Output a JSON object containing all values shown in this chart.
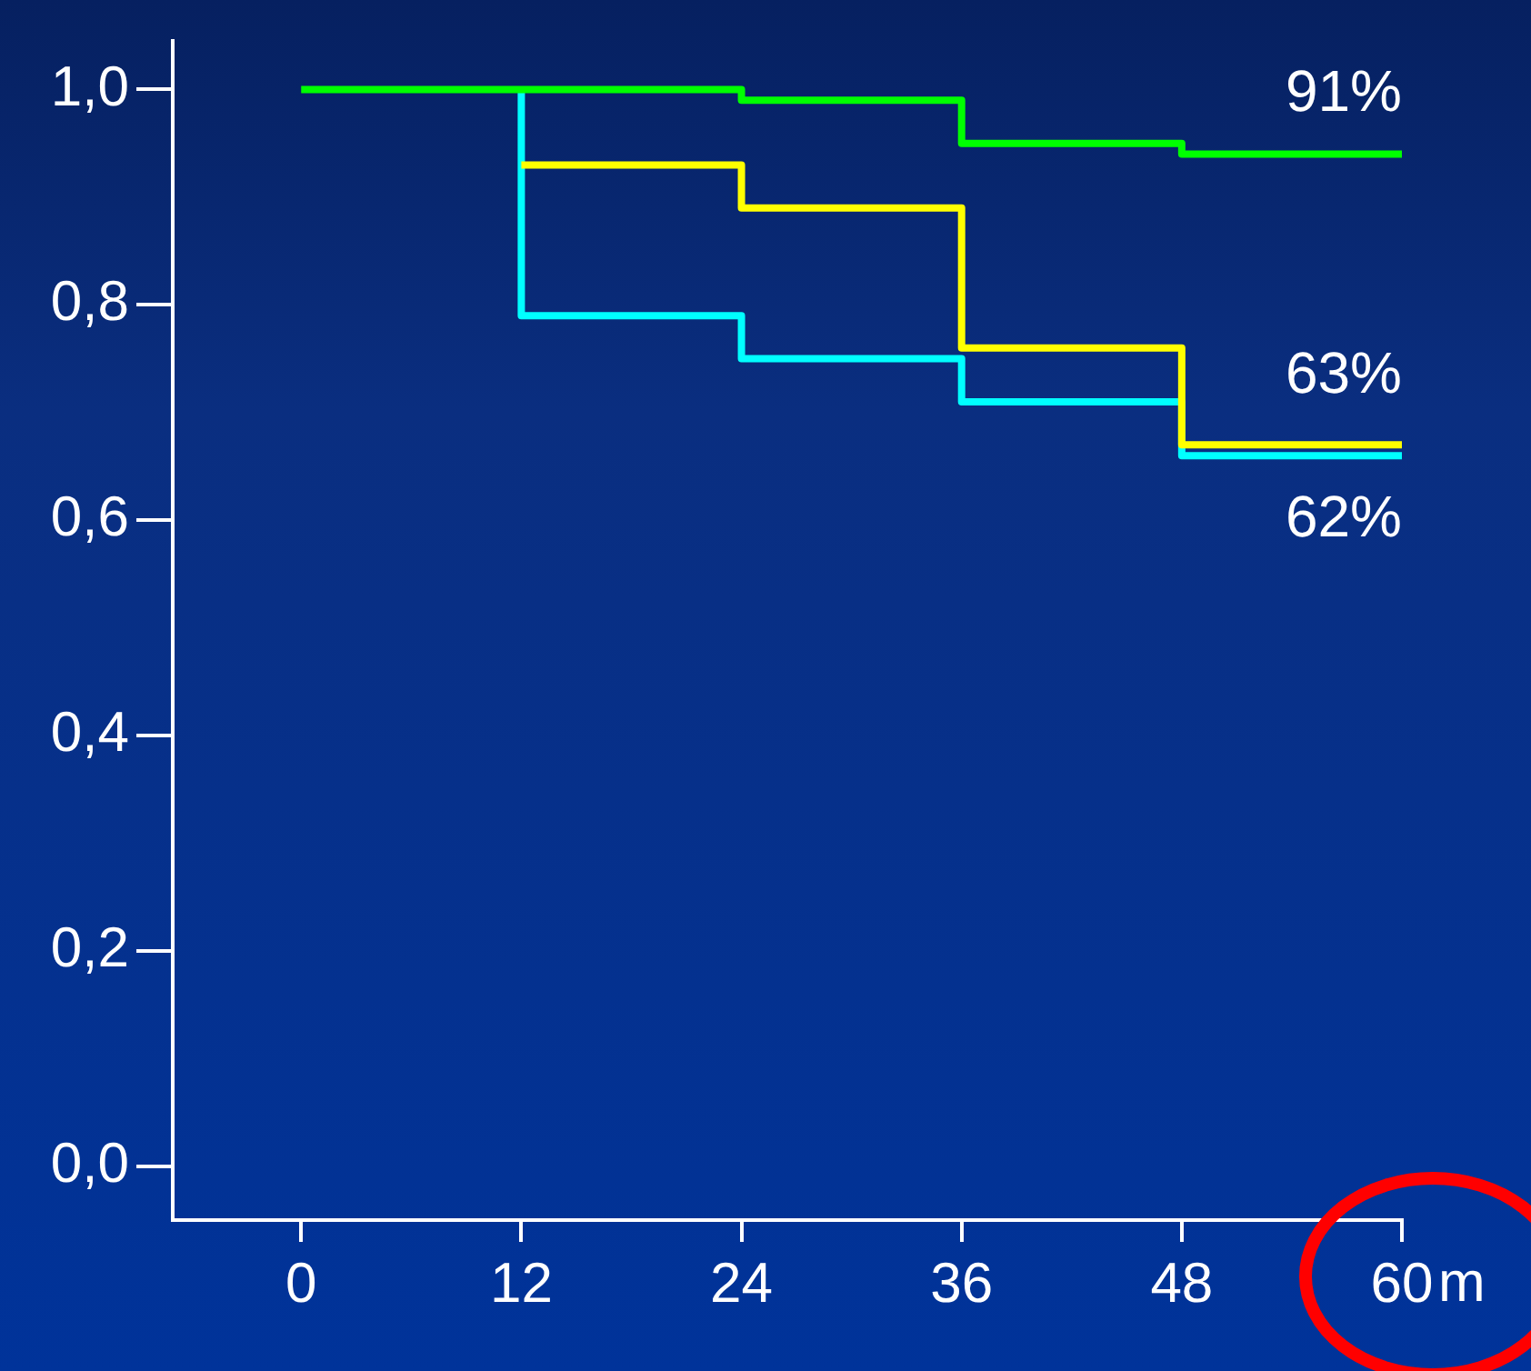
{
  "chart_data": {
    "type": "step",
    "xlabel": "m",
    "series": [
      {
        "color": "#00ff00",
        "x": [
          0,
          24,
          36,
          48,
          60
        ],
        "values": [
          1.0,
          0.99,
          0.95,
          0.94,
          0.94
        ]
      },
      {
        "color": "#ffff00",
        "x": [
          12,
          24,
          36,
          48,
          60
        ],
        "values": [
          0.93,
          0.89,
          0.76,
          0.67,
          0.67
        ]
      },
      {
        "color": "#00ffff",
        "x": [
          12,
          12,
          24,
          36,
          48,
          60
        ],
        "values": [
          1.0,
          0.79,
          0.75,
          0.71,
          0.66,
          0.66
        ]
      }
    ],
    "xlim": [
      -7,
      60
    ],
    "xticks": [
      0,
      12,
      24,
      36,
      48,
      60
    ],
    "ylim": [
      -0.05,
      1.045
    ],
    "yticks": [
      {
        "value": 0,
        "label": "0,0"
      },
      {
        "value": 0.2,
        "label": "0,2"
      },
      {
        "value": 0.4,
        "label": "0,4"
      },
      {
        "value": 0.6,
        "label": "0,6"
      },
      {
        "value": 0.8,
        "label": "0,8"
      },
      {
        "value": 1,
        "label": "1,0"
      }
    ],
    "annotations": [
      "91%",
      "63%",
      "62%"
    ],
    "grid": false,
    "legend": false,
    "marker": "none",
    "line_style": "solid"
  }
}
